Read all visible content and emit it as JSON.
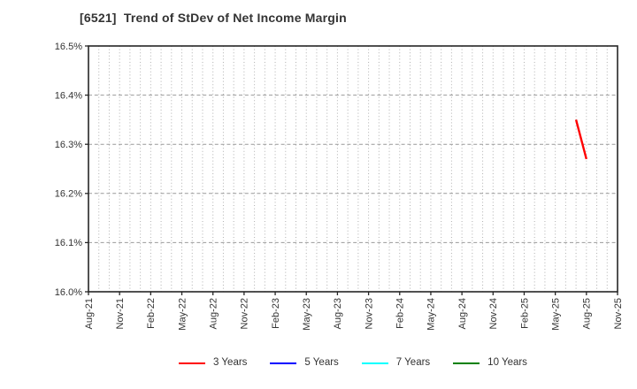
{
  "chart_data": {
    "type": "line",
    "title": "[6521]  Trend of StDev of Net Income Margin",
    "xlabel": "",
    "ylabel": "",
    "ylim": [
      16.0,
      16.5
    ],
    "y_tick_step": 0.1,
    "y_tick_labels": [
      "16.0%",
      "16.1%",
      "16.2%",
      "16.3%",
      "16.4%",
      "16.5%"
    ],
    "x_tick_labels": [
      "Aug-21",
      "Nov-21",
      "Feb-22",
      "May-22",
      "Aug-22",
      "Nov-22",
      "Feb-23",
      "May-23",
      "Aug-23",
      "Nov-23",
      "Feb-24",
      "May-24",
      "Aug-24",
      "Nov-24",
      "Feb-25",
      "May-25",
      "Aug-25",
      "Nov-25"
    ],
    "x_months_span": 51,
    "grid": {
      "horizontal_style": "dashed",
      "vertical_style": "dotted",
      "vertical_interval": "monthly"
    },
    "series": [
      {
        "name": "3 Years",
        "color": "#ff0000",
        "points": [
          {
            "x": "Jul-25",
            "y": 16.35
          },
          {
            "x": "Aug-25",
            "y": 16.27
          }
        ]
      },
      {
        "name": "5 Years",
        "color": "#0000ff",
        "points": []
      },
      {
        "name": "7 Years",
        "color": "#00ffff",
        "points": []
      },
      {
        "name": "10 Years",
        "color": "#008000",
        "points": []
      }
    ],
    "legend": {
      "position": "bottom",
      "items": [
        {
          "label": "3 Years",
          "color": "#ff0000"
        },
        {
          "label": "5 Years",
          "color": "#0000ff"
        },
        {
          "label": "7 Years",
          "color": "#00ffff"
        },
        {
          "label": "10 Years",
          "color": "#008000"
        }
      ]
    }
  },
  "colors": {
    "background": "#ffffff",
    "frame": "#262626",
    "grid_horizontal": "#999999",
    "grid_vertical": "#b0b0b0",
    "text": "#333333"
  }
}
